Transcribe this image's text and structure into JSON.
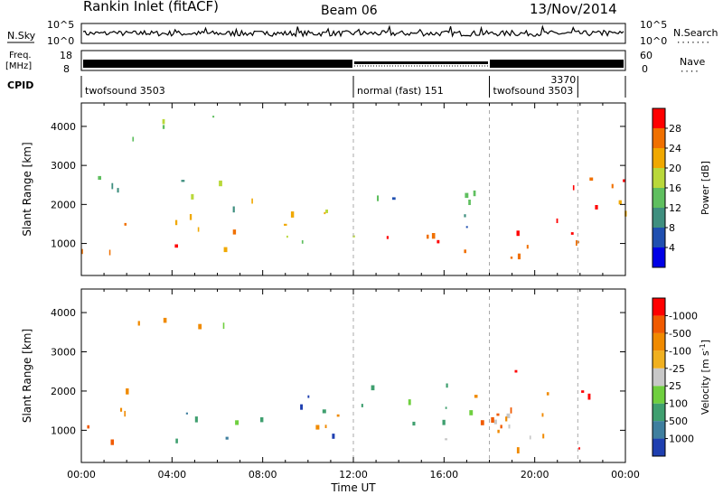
{
  "header": {
    "station": "Rankin Inlet (fitACF)",
    "beam": "Beam 06",
    "date": "13/Nov/2014"
  },
  "panels": {
    "nsky": {
      "left_label": "N.Sky",
      "right_label": "N.Search",
      "left_ticks": [
        "10^5",
        "10^0"
      ],
      "right_ticks": [
        "10^5",
        "10^0"
      ]
    },
    "freq": {
      "left_label_top": "Freq.",
      "left_label_bottom": "[MHz]",
      "right_label": "Nave",
      "left_ticks": [
        "18",
        "8"
      ],
      "right_ticks": [
        "60",
        "0"
      ]
    },
    "cpid": {
      "label": "CPID",
      "segments": [
        {
          "start": 0,
          "end": 12,
          "text": "twofsound 3503"
        },
        {
          "start": 12,
          "end": 18,
          "text": "normal (fast) 151"
        },
        {
          "start": 18,
          "end": 21.9,
          "text": "twofsound 3503"
        },
        {
          "start": 21.9,
          "end": 24,
          "text": "3370"
        }
      ]
    }
  },
  "chart_data": [
    {
      "type": "heatmap",
      "name": "power",
      "ylabel": "Slant Range [km]",
      "xlabel": "",
      "yticks": [
        1000,
        2000,
        3000,
        4000
      ],
      "ylim": [
        180,
        4600
      ],
      "xlim": [
        0,
        24
      ],
      "colorbar": {
        "label": "Power [dB]",
        "levels": [
          "4",
          "8",
          "12",
          "16",
          "20",
          "24",
          "28"
        ],
        "colors": [
          "#0000e6",
          "#1f4fb0",
          "#3f8f7f",
          "#5fbf5f",
          "#b9d83a",
          "#f0a800",
          "#f07000",
          "#ff0000"
        ]
      },
      "scatter_bands": [
        {
          "t0": 0.0,
          "t1": 7.0,
          "r0": 700,
          "r1": 1900,
          "levels": [
            5,
            6,
            7
          ]
        },
        {
          "t0": 0.0,
          "t1": 7.0,
          "r0": 1900,
          "r1": 2800,
          "levels": [
            2,
            3,
            4
          ]
        },
        {
          "t0": 1.0,
          "t1": 6.5,
          "r0": 3700,
          "r1": 4300,
          "levels": [
            3,
            4
          ]
        },
        {
          "t0": 7.5,
          "t1": 12.0,
          "r0": 900,
          "r1": 2400,
          "levels": [
            3,
            4,
            5
          ]
        },
        {
          "t0": 12.0,
          "t1": 18.0,
          "r0": 1400,
          "r1": 2500,
          "levels": [
            1,
            2,
            3
          ]
        },
        {
          "t0": 12.0,
          "t1": 18.0,
          "r0": 700,
          "r1": 1400,
          "levels": [
            5,
            6,
            7
          ]
        },
        {
          "t0": 18.0,
          "t1": 24.0,
          "r0": 600,
          "r1": 1800,
          "levels": [
            6,
            7
          ]
        },
        {
          "t0": 18.0,
          "t1": 24.0,
          "r0": 1800,
          "r1": 2800,
          "levels": [
            5,
            6,
            7
          ]
        }
      ]
    },
    {
      "type": "heatmap",
      "name": "velocity",
      "ylabel": "Slant Range [km]",
      "xlabel": "Time UT",
      "yticks": [
        1000,
        2000,
        3000,
        4000
      ],
      "ylim": [
        180,
        4600
      ],
      "xlim": [
        0,
        24
      ],
      "xticks": [
        "00:00",
        "04:00",
        "08:00",
        "12:00",
        "16:00",
        "20:00",
        "00:00"
      ],
      "colorbar": {
        "label": "Velocity [m s",
        "label_sup": "-1",
        "label_end": "]",
        "levels": [
          "1000",
          "500",
          "100",
          "25",
          "-25",
          "-100",
          "-500",
          "-1000"
        ],
        "colors": [
          "#1f3fb0",
          "#3f7f9f",
          "#3f9f6f",
          "#6fcf3f",
          "#c8c8c8",
          "#f0b020",
          "#f08a00",
          "#f05a00",
          "#ff0000"
        ]
      },
      "scatter_bands": [
        {
          "t0": 0.0,
          "t1": 3.0,
          "r0": 700,
          "r1": 2100,
          "levels": [
            6,
            7
          ]
        },
        {
          "t0": 3.0,
          "t1": 7.0,
          "r0": 700,
          "r1": 1900,
          "levels": [
            1,
            2,
            3
          ]
        },
        {
          "t0": 1.0,
          "t1": 6.5,
          "r0": 3700,
          "r1": 4300,
          "levels": [
            3,
            6
          ]
        },
        {
          "t0": 7.5,
          "t1": 12.0,
          "r0": 900,
          "r1": 2400,
          "levels": [
            0,
            2,
            6
          ]
        },
        {
          "t0": 12.0,
          "t1": 18.0,
          "r0": 900,
          "r1": 2400,
          "levels": [
            2,
            3,
            6,
            7
          ]
        },
        {
          "t0": 16.0,
          "t1": 21.0,
          "r0": 500,
          "r1": 1500,
          "levels": [
            4
          ]
        },
        {
          "t0": 18.0,
          "t1": 24.0,
          "r0": 500,
          "r1": 2600,
          "levels": [
            6,
            7,
            8
          ]
        }
      ]
    }
  ]
}
